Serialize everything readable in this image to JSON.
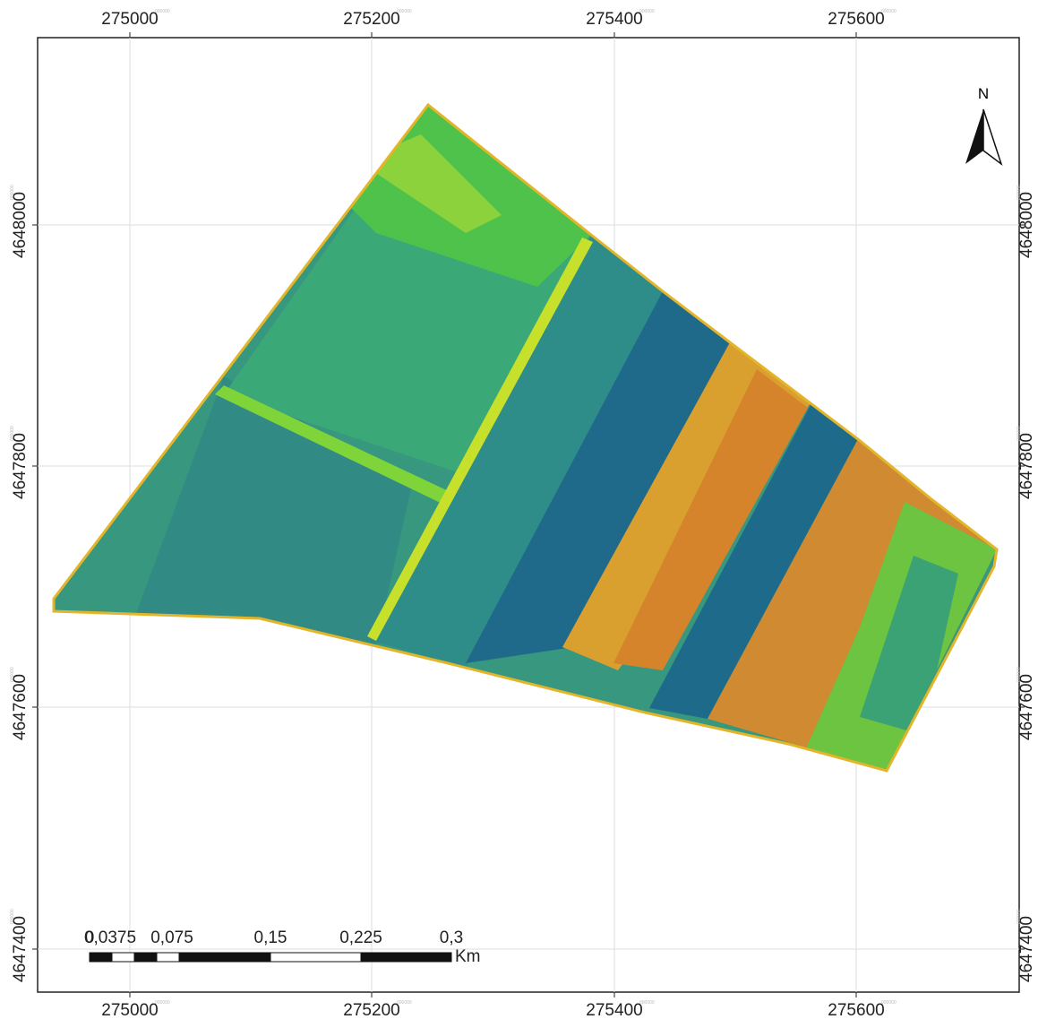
{
  "map": {
    "x_labels": [
      "275000",
      "275200",
      "275400",
      "275600"
    ],
    "y_labels": [
      "4648000",
      "4647800",
      "4647600",
      "4647400"
    ],
    "label_suffix": "000000",
    "north_arrow": "N",
    "scale_bar": {
      "labels": [
        "0",
        "0,0375",
        "0,075",
        "0,15",
        "0,225",
        "0,3"
      ],
      "unit": "Km"
    }
  }
}
